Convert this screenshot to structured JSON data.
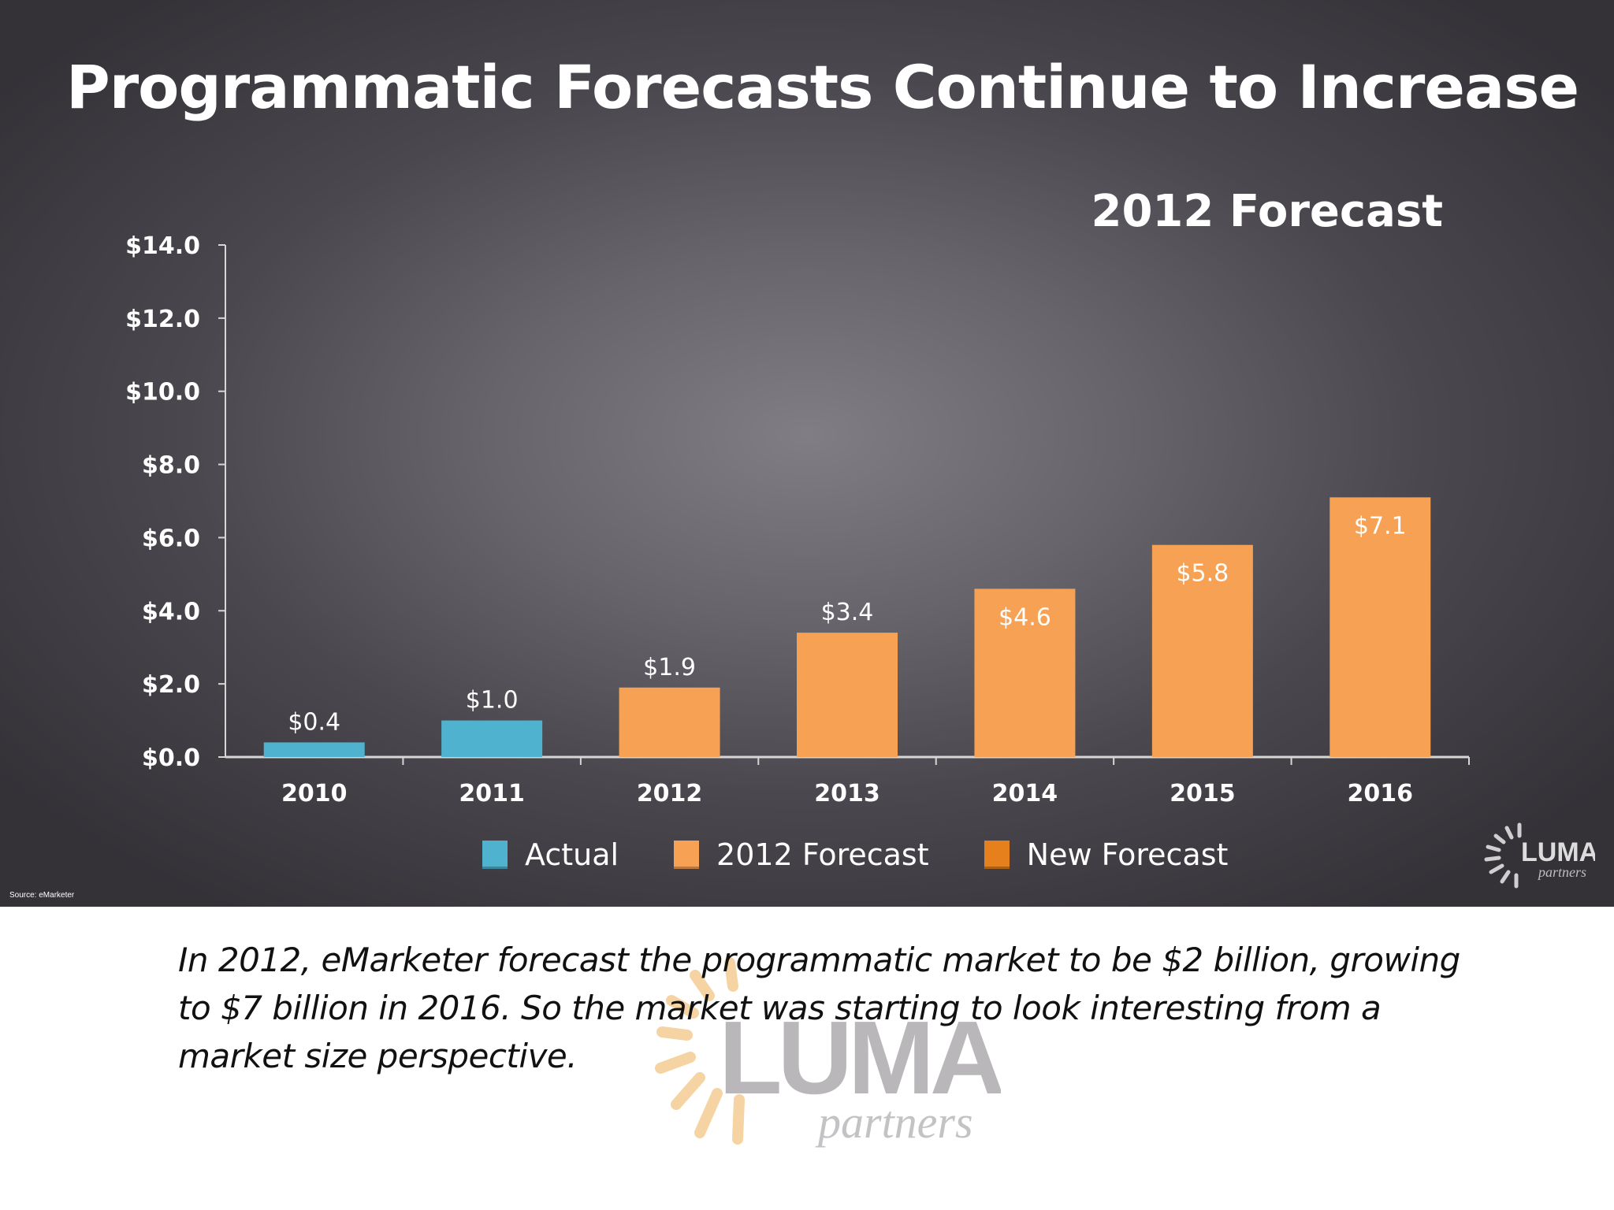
{
  "slide": {
    "title": "Programmatic Forecasts Continue to Increase",
    "source": "Source: eMarketer"
  },
  "chart_data": {
    "type": "bar",
    "title": "2012 Forecast",
    "categories": [
      "2010",
      "2011",
      "2012",
      "2013",
      "2014",
      "2015",
      "2016"
    ],
    "values": [
      0.4,
      1.0,
      1.9,
      3.4,
      4.6,
      5.8,
      7.1
    ],
    "value_labels": [
      "$0.4",
      "$1.0",
      "$1.9",
      "$3.4",
      "$4.6",
      "$5.8",
      "$7.1"
    ],
    "bar_series": [
      "Actual",
      "Actual",
      "2012 Forecast",
      "2012 Forecast",
      "2012 Forecast",
      "2012 Forecast",
      "2012 Forecast"
    ],
    "y_ticks": [
      "$0.0",
      "$2.0",
      "$4.0",
      "$6.0",
      "$8.0",
      "$10.0",
      "$12.0",
      "$14.0"
    ],
    "ylim": [
      0,
      14
    ],
    "grid": false,
    "legend_position": "bottom",
    "legend": [
      {
        "name": "Actual",
        "color": "#4fb3cf"
      },
      {
        "name": "2012 Forecast",
        "color": "#f6a154"
      },
      {
        "name": "New Forecast",
        "color": "#e5801c"
      }
    ]
  },
  "logo": {
    "name": "LUMA",
    "subtext": "partners"
  },
  "caption": "In 2012, eMarketer forecast the programmatic market to be $2 billion, growing to $7 billion in 2016. So the market was starting to look interesting from a market size perspective."
}
